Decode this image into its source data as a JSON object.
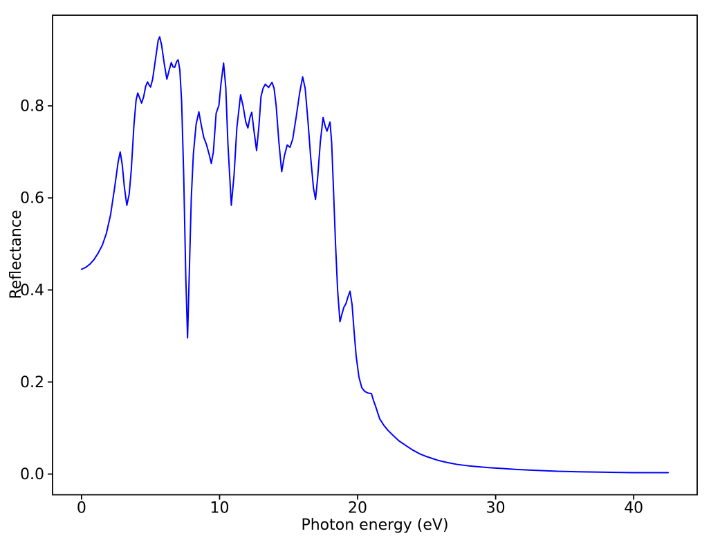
{
  "figure": {
    "background": "#ffffff",
    "axes_color": "#000000",
    "text_color": "#000000"
  },
  "chart_data": {
    "type": "line",
    "title": "",
    "xlabel": "Photon energy (eV)",
    "ylabel": "Reflectance",
    "xlim": [
      -2.1,
      44.6
    ],
    "ylim": [
      -0.045,
      0.997
    ],
    "xticks": [
      {
        "v": 0,
        "label": "0"
      },
      {
        "v": 10,
        "label": "10"
      },
      {
        "v": 20,
        "label": "20"
      },
      {
        "v": 30,
        "label": "30"
      },
      {
        "v": 40,
        "label": "40"
      }
    ],
    "yticks": [
      {
        "v": 0.0,
        "label": "0.0"
      },
      {
        "v": 0.2,
        "label": "0.2"
      },
      {
        "v": 0.4,
        "label": "0.4"
      },
      {
        "v": 0.6,
        "label": "0.6"
      },
      {
        "v": 0.8,
        "label": "0.8"
      }
    ],
    "grid": false,
    "legend_position": "none",
    "series": [
      {
        "name": "Reflectance spectrum",
        "color": "#0000ff",
        "line_width": 2,
        "points": [
          [
            0.0,
            0.445
          ],
          [
            0.3,
            0.449
          ],
          [
            0.6,
            0.456
          ],
          [
            0.9,
            0.466
          ],
          [
            1.2,
            0.48
          ],
          [
            1.5,
            0.497
          ],
          [
            1.8,
            0.523
          ],
          [
            2.1,
            0.563
          ],
          [
            2.4,
            0.623
          ],
          [
            2.65,
            0.678
          ],
          [
            2.8,
            0.7
          ],
          [
            2.95,
            0.672
          ],
          [
            3.1,
            0.624
          ],
          [
            3.28,
            0.584
          ],
          [
            3.45,
            0.608
          ],
          [
            3.6,
            0.66
          ],
          [
            3.8,
            0.76
          ],
          [
            3.95,
            0.812
          ],
          [
            4.07,
            0.828
          ],
          [
            4.2,
            0.818
          ],
          [
            4.35,
            0.806
          ],
          [
            4.5,
            0.82
          ],
          [
            4.65,
            0.843
          ],
          [
            4.78,
            0.852
          ],
          [
            4.9,
            0.845
          ],
          [
            5.0,
            0.841
          ],
          [
            5.15,
            0.858
          ],
          [
            5.35,
            0.9
          ],
          [
            5.55,
            0.942
          ],
          [
            5.66,
            0.95
          ],
          [
            5.8,
            0.932
          ],
          [
            6.0,
            0.89
          ],
          [
            6.18,
            0.858
          ],
          [
            6.35,
            0.878
          ],
          [
            6.5,
            0.894
          ],
          [
            6.62,
            0.885
          ],
          [
            6.75,
            0.884
          ],
          [
            6.9,
            0.897
          ],
          [
            7.0,
            0.9
          ],
          [
            7.12,
            0.878
          ],
          [
            7.25,
            0.81
          ],
          [
            7.4,
            0.65
          ],
          [
            7.55,
            0.43
          ],
          [
            7.68,
            0.296
          ],
          [
            7.8,
            0.43
          ],
          [
            7.95,
            0.6
          ],
          [
            8.1,
            0.695
          ],
          [
            8.3,
            0.76
          ],
          [
            8.5,
            0.787
          ],
          [
            8.65,
            0.762
          ],
          [
            8.85,
            0.732
          ],
          [
            9.05,
            0.716
          ],
          [
            9.25,
            0.694
          ],
          [
            9.4,
            0.675
          ],
          [
            9.55,
            0.7
          ],
          [
            9.75,
            0.784
          ],
          [
            9.95,
            0.801
          ],
          [
            10.1,
            0.848
          ],
          [
            10.29,
            0.893
          ],
          [
            10.45,
            0.84
          ],
          [
            10.6,
            0.72
          ],
          [
            10.85,
            0.584
          ],
          [
            11.05,
            0.65
          ],
          [
            11.25,
            0.752
          ],
          [
            11.52,
            0.824
          ],
          [
            11.7,
            0.8
          ],
          [
            11.9,
            0.765
          ],
          [
            12.05,
            0.752
          ],
          [
            12.2,
            0.775
          ],
          [
            12.33,
            0.786
          ],
          [
            12.5,
            0.744
          ],
          [
            12.68,
            0.703
          ],
          [
            12.85,
            0.756
          ],
          [
            13.0,
            0.82
          ],
          [
            13.15,
            0.838
          ],
          [
            13.31,
            0.847
          ],
          [
            13.55,
            0.84
          ],
          [
            13.8,
            0.851
          ],
          [
            13.95,
            0.838
          ],
          [
            14.1,
            0.8
          ],
          [
            14.3,
            0.72
          ],
          [
            14.5,
            0.657
          ],
          [
            14.7,
            0.692
          ],
          [
            14.9,
            0.715
          ],
          [
            15.1,
            0.71
          ],
          [
            15.3,
            0.728
          ],
          [
            15.55,
            0.776
          ],
          [
            15.8,
            0.828
          ],
          [
            16.02,
            0.863
          ],
          [
            16.2,
            0.838
          ],
          [
            16.4,
            0.768
          ],
          [
            16.6,
            0.688
          ],
          [
            16.8,
            0.622
          ],
          [
            16.95,
            0.597
          ],
          [
            17.1,
            0.642
          ],
          [
            17.3,
            0.722
          ],
          [
            17.5,
            0.775
          ],
          [
            17.65,
            0.756
          ],
          [
            17.78,
            0.745
          ],
          [
            17.9,
            0.756
          ],
          [
            18.0,
            0.765
          ],
          [
            18.12,
            0.72
          ],
          [
            18.25,
            0.62
          ],
          [
            18.4,
            0.5
          ],
          [
            18.55,
            0.4
          ],
          [
            18.72,
            0.331
          ],
          [
            18.85,
            0.346
          ],
          [
            19.0,
            0.362
          ],
          [
            19.15,
            0.37
          ],
          [
            19.3,
            0.385
          ],
          [
            19.45,
            0.397
          ],
          [
            19.6,
            0.368
          ],
          [
            19.75,
            0.308
          ],
          [
            19.9,
            0.255
          ],
          [
            20.1,
            0.21
          ],
          [
            20.3,
            0.188
          ],
          [
            20.5,
            0.18
          ],
          [
            20.75,
            0.176
          ],
          [
            21.0,
            0.175
          ],
          [
            21.15,
            0.16
          ],
          [
            21.35,
            0.143
          ],
          [
            21.6,
            0.12
          ],
          [
            21.9,
            0.106
          ],
          [
            22.2,
            0.095
          ],
          [
            22.5,
            0.086
          ],
          [
            23.0,
            0.072
          ],
          [
            23.5,
            0.062
          ],
          [
            24.0,
            0.052
          ],
          [
            24.5,
            0.044
          ],
          [
            25.0,
            0.038
          ],
          [
            25.8,
            0.03
          ],
          [
            26.5,
            0.025
          ],
          [
            27.2,
            0.021
          ],
          [
            28.0,
            0.018
          ],
          [
            28.7,
            0.016
          ],
          [
            29.5,
            0.014
          ],
          [
            30.5,
            0.012
          ],
          [
            31.5,
            0.01
          ],
          [
            33.0,
            0.008
          ],
          [
            34.5,
            0.006
          ],
          [
            36.0,
            0.005
          ],
          [
            38.0,
            0.004
          ],
          [
            40.0,
            0.003
          ],
          [
            41.5,
            0.003
          ],
          [
            42.5,
            0.003
          ]
        ]
      }
    ]
  }
}
